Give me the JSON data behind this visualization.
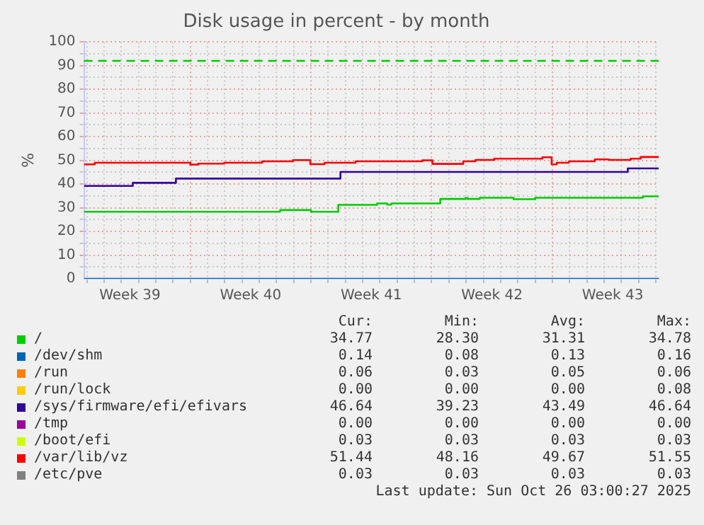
{
  "chart_data": {
    "type": "step",
    "title": "Disk usage in percent - by month",
    "ylabel": "%",
    "xlim": [
      "2025-09-22T20:00",
      "2025-10-26T04:00"
    ],
    "xticks": [
      {
        "value": "2025-09-23",
        "label": null
      },
      {
        "value": "2025-09-24",
        "label": null
      },
      {
        "value": "2025-09-25",
        "label": null
      },
      {
        "value": "2025-09-25T12:00",
        "label": "Week 39"
      },
      {
        "value": "2025-09-26",
        "label": null
      },
      {
        "value": "2025-09-27",
        "label": null
      },
      {
        "value": "2025-09-28",
        "label": null
      },
      {
        "value": "2025-09-29",
        "label": null
      },
      {
        "value": "2025-09-30",
        "label": null
      },
      {
        "value": "2025-10-01",
        "label": null
      },
      {
        "value": "2025-10-02",
        "label": null
      },
      {
        "value": "2025-10-02T12:00",
        "label": "Week 40"
      },
      {
        "value": "2025-10-03",
        "label": null
      },
      {
        "value": "2025-10-04",
        "label": null
      },
      {
        "value": "2025-10-05",
        "label": null
      },
      {
        "value": "2025-10-06",
        "label": null
      },
      {
        "value": "2025-10-07",
        "label": null
      },
      {
        "value": "2025-10-08",
        "label": null
      },
      {
        "value": "2025-10-09",
        "label": null
      },
      {
        "value": "2025-10-09T12:00",
        "label": "Week 41"
      },
      {
        "value": "2025-10-10",
        "label": null
      },
      {
        "value": "2025-10-11",
        "label": null
      },
      {
        "value": "2025-10-12",
        "label": null
      },
      {
        "value": "2025-10-13",
        "label": null
      },
      {
        "value": "2025-10-14",
        "label": null
      },
      {
        "value": "2025-10-15",
        "label": null
      },
      {
        "value": "2025-10-16",
        "label": null
      },
      {
        "value": "2025-10-16T12:00",
        "label": "Week 42"
      },
      {
        "value": "2025-10-17",
        "label": null
      },
      {
        "value": "2025-10-18",
        "label": null
      },
      {
        "value": "2025-10-19",
        "label": null
      },
      {
        "value": "2025-10-20",
        "label": null
      },
      {
        "value": "2025-10-21",
        "label": null
      },
      {
        "value": "2025-10-22",
        "label": null
      },
      {
        "value": "2025-10-23",
        "label": null
      },
      {
        "value": "2025-10-23T12:00",
        "label": "Week 43"
      },
      {
        "value": "2025-10-24",
        "label": null
      },
      {
        "value": "2025-10-25",
        "label": null
      },
      {
        "value": "2025-10-26",
        "label": null
      }
    ],
    "ylim": [
      0,
      100
    ],
    "yticks": [
      0,
      {
        "value": 5,
        "label": null
      },
      10,
      {
        "value": 15,
        "label": null
      },
      20,
      {
        "value": 25,
        "label": null
      },
      30,
      {
        "value": 35,
        "label": null
      },
      40,
      {
        "value": 45,
        "label": null
      },
      50,
      {
        "value": 55,
        "label": null
      },
      60,
      {
        "value": 65,
        "label": null
      },
      70,
      {
        "value": 75,
        "label": null
      },
      80,
      {
        "value": 85,
        "label": null
      },
      90,
      {
        "value": 95,
        "label": null
      },
      100
    ],
    "grid": true,
    "legend": "bottom",
    "series": [
      {
        "name": "/",
        "color": "#00cc00",
        "x": [
          "2025-09-22T20:00",
          "2025-10-04T05:00",
          "2025-10-06T00:00",
          "2025-10-07T14:00",
          "2025-10-09T20:00",
          "2025-10-10T10:00",
          "2025-10-10T16:00",
          "2025-10-13T12:00",
          "2025-10-14T23:00",
          "2025-10-15T02:00",
          "2025-10-15T19:00",
          "2025-10-17T18:00",
          "2025-10-19T00:00",
          "2025-10-25T06:00",
          "2025-10-26T04:00"
        ],
        "values": [
          28.3,
          29.0,
          28.3,
          31.2,
          31.8,
          31.3,
          31.8,
          33.7,
          34.1,
          33.7,
          34.2,
          33.6,
          34.2,
          34.8,
          34.8
        ]
      },
      {
        "name": "/dev/shm",
        "color": "#0066b3",
        "x": [
          "2025-09-22T20:00",
          "2025-10-26T04:00"
        ],
        "values": [
          0,
          0
        ]
      },
      {
        "name": "/run",
        "color": "#ff8000"
      },
      {
        "name": "/run/lock",
        "color": "#ffcc00"
      },
      {
        "name": "/sys/firmware/efi/efivars",
        "color": "#330099",
        "x": [
          "2025-09-22T20:00",
          "2025-09-25T16:00",
          "2025-09-28T04:00",
          "2025-10-07T17:00",
          "2025-10-24T09:00",
          "2025-10-26T04:00"
        ],
        "values": [
          39.2,
          40.5,
          42.3,
          45.1,
          46.6,
          46.6
        ]
      },
      {
        "name": "/tmp",
        "color": "#990099"
      },
      {
        "name": "/boot/efi",
        "color": "#ccff00"
      },
      {
        "name": "/var/lib/vz",
        "color": "#ff0000",
        "x": [
          "2025-09-22T20:00",
          "2025-09-23T11:00",
          "2025-09-29T00:00",
          "2025-09-29T11:00",
          "2025-09-30T23:00",
          "2025-10-03T04:00",
          "2025-10-04T23:00",
          "2025-10-05T23:00",
          "2025-10-06T19:00",
          "2025-10-08T14:00",
          "2025-10-12T11:00",
          "2025-10-13T01:00",
          "2025-10-14T20:00",
          "2025-10-15T13:00",
          "2025-10-16T15:00",
          "2025-10-19T10:00",
          "2025-10-19T23:00",
          "2025-10-20T06:00",
          "2025-10-20T23:00",
          "2025-10-22T11:00",
          "2025-10-23T07:00",
          "2025-10-24T13:00",
          "2025-10-25T03:00",
          "2025-10-26T04:00"
        ],
        "values": [
          48.3,
          49.0,
          48.2,
          48.6,
          49.0,
          49.6,
          50.1,
          48.4,
          49.0,
          49.6,
          50.0,
          48.5,
          49.6,
          50.2,
          50.7,
          51.3,
          48.3,
          49.0,
          49.6,
          50.4,
          50.2,
          50.7,
          51.4,
          51.4
        ]
      },
      {
        "name": "/etc/pve",
        "color": "#808080"
      }
    ],
    "ref_lines": [
      {
        "axis": "y",
        "value": 92,
        "color": "#00cc00",
        "line_style": "dashed"
      }
    ],
    "annotations": [
      "Cur:",
      "Min:",
      "Avg:",
      "Max:",
      "34.77",
      "28.30",
      "31.31",
      "34.78",
      "0.14",
      "0.08",
      "0.13",
      "0.16",
      "0.06",
      "0.03",
      "0.05",
      "0.06",
      "0.00",
      "0.00",
      "0.00",
      "0.08",
      "46.64",
      "39.23",
      "43.49",
      "46.64",
      "0.00",
      "0.00",
      "0.00",
      "0.00",
      "0.03",
      "0.03",
      "0.03",
      "0.03",
      "51.44",
      "48.16",
      "49.67",
      "51.55",
      "0.03",
      "0.03",
      "0.03",
      "0.03",
      "Last update: Sun Oct 26 03:00:27 2025"
    ]
  }
}
